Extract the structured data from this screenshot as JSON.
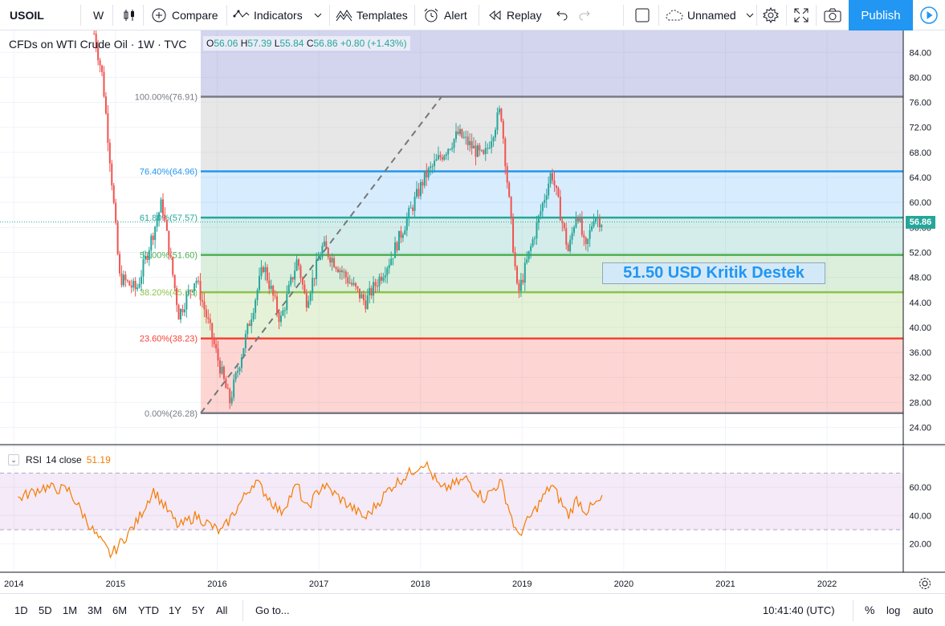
{
  "toolbar": {
    "symbol": "USOIL",
    "interval": "W",
    "compare_label": "Compare",
    "indicators_label": "Indicators",
    "templates_label": "Templates",
    "alert_label": "Alert",
    "replay_label": "Replay",
    "layout_name": "Unnamed",
    "publish_label": "Publish"
  },
  "legend": {
    "title": "CFDs on WTI Crude Oil · 1W · TVC",
    "open_key": "O",
    "open": "56.06",
    "high_key": "H",
    "high": "57.39",
    "low_key": "L",
    "low": "55.84",
    "close_key": "C",
    "close": "56.86",
    "change": "+0.80 (+1.43%)"
  },
  "rsi": {
    "name": "RSI",
    "params": "14 close",
    "value": "51.19"
  },
  "annotation": "51.50 USD Kritik Destek",
  "last_price": "56.86",
  "bottom": {
    "ranges": [
      "1D",
      "5D",
      "1M",
      "3M",
      "6M",
      "YTD",
      "1Y",
      "5Y",
      "All"
    ],
    "goto_label": "Go to...",
    "clock": "10:41:40 (UTC)",
    "percent_label": "%",
    "log_label": "log",
    "auto_label": "auto"
  },
  "colors": {
    "up": "#26a69a",
    "down": "#ef5350",
    "accent": "#2196f3",
    "rsi_line": "#f57c00"
  },
  "chart_data": [
    {
      "type": "candlestick",
      "title": "CFDs on WTI Crude Oil · 1W · TVC",
      "price_axis": {
        "ticks": [
          84,
          80,
          76,
          72,
          68,
          64,
          60,
          56,
          52,
          48,
          44,
          40,
          36,
          32,
          28,
          24
        ],
        "range": [
          21.5,
          87.5
        ]
      },
      "time_axis": {
        "ticks": [
          "2014",
          "2015",
          "2016",
          "2017",
          "2018",
          "2019",
          "2020",
          "2021",
          "2022"
        ]
      },
      "fibonacci": [
        {
          "label": "100.00%",
          "price": 76.91,
          "color": "#787b86"
        },
        {
          "label": "76.40%",
          "price": 64.96,
          "color": "#2196f3"
        },
        {
          "label": "61.80%",
          "price": 57.57,
          "color": "#26a69a"
        },
        {
          "label": "50.00%",
          "price": 51.6,
          "color": "#4caf50"
        },
        {
          "label": "38.20%",
          "price": 45.63,
          "color": "#8bc34a"
        },
        {
          "label": "23.60%",
          "price": 38.23,
          "color": "#f44336"
        },
        {
          "label": "0.00%",
          "price": 26.28,
          "color": "#787b86"
        }
      ],
      "anchors": [
        {
          "date": "2014-10",
          "price": 87
        },
        {
          "date": "2014-11",
          "price": 80
        },
        {
          "date": "2014-12",
          "price": 65
        },
        {
          "date": "2015-01",
          "price": 48
        },
        {
          "date": "2015-03",
          "price": 46
        },
        {
          "date": "2015-06",
          "price": 60
        },
        {
          "date": "2015-08",
          "price": 42
        },
        {
          "date": "2015-10",
          "price": 48
        },
        {
          "date": "2015-12",
          "price": 38
        },
        {
          "date": "2016-02",
          "price": 28
        },
        {
          "date": "2016-06",
          "price": 50
        },
        {
          "date": "2016-08",
          "price": 41
        },
        {
          "date": "2016-10",
          "price": 51
        },
        {
          "date": "2016-11",
          "price": 44
        },
        {
          "date": "2017-01",
          "price": 53
        },
        {
          "date": "2017-06",
          "price": 44
        },
        {
          "date": "2017-09",
          "price": 51
        },
        {
          "date": "2018-01",
          "price": 64
        },
        {
          "date": "2018-05",
          "price": 71
        },
        {
          "date": "2018-08",
          "price": 67
        },
        {
          "date": "2018-10",
          "price": 75
        },
        {
          "date": "2018-12",
          "price": 45
        },
        {
          "date": "2019-04",
          "price": 65
        },
        {
          "date": "2019-06",
          "price": 52
        },
        {
          "date": "2019-07",
          "price": 59
        },
        {
          "date": "2019-08",
          "price": 52
        },
        {
          "date": "2019-09",
          "price": 58
        },
        {
          "date": "2019-10",
          "price": 56.86
        }
      ]
    },
    {
      "type": "line",
      "title": "RSI 14 close",
      "y_ticks": [
        60,
        40,
        20
      ],
      "bands": [
        30,
        70
      ],
      "points": [
        {
          "date": "2014-01",
          "value": 52
        },
        {
          "date": "2014-04",
          "value": 60
        },
        {
          "date": "2014-07",
          "value": 58
        },
        {
          "date": "2014-10",
          "value": 28
        },
        {
          "date": "2014-12",
          "value": 12
        },
        {
          "date": "2015-03",
          "value": 35
        },
        {
          "date": "2015-05",
          "value": 58
        },
        {
          "date": "2015-08",
          "value": 32
        },
        {
          "date": "2015-10",
          "value": 40
        },
        {
          "date": "2016-01",
          "value": 28
        },
        {
          "date": "2016-05",
          "value": 65
        },
        {
          "date": "2016-08",
          "value": 42
        },
        {
          "date": "2016-10",
          "value": 62
        },
        {
          "date": "2016-11",
          "value": 44
        },
        {
          "date": "2017-01",
          "value": 62
        },
        {
          "date": "2017-06",
          "value": 38
        },
        {
          "date": "2017-09",
          "value": 60
        },
        {
          "date": "2018-01",
          "value": 78
        },
        {
          "date": "2018-03",
          "value": 58
        },
        {
          "date": "2018-06",
          "value": 66
        },
        {
          "date": "2018-08",
          "value": 52
        },
        {
          "date": "2018-10",
          "value": 64
        },
        {
          "date": "2018-12",
          "value": 25
        },
        {
          "date": "2019-04",
          "value": 62
        },
        {
          "date": "2019-06",
          "value": 40
        },
        {
          "date": "2019-07",
          "value": 52
        },
        {
          "date": "2019-08",
          "value": 43
        },
        {
          "date": "2019-10",
          "value": 51.19
        }
      ]
    }
  ]
}
